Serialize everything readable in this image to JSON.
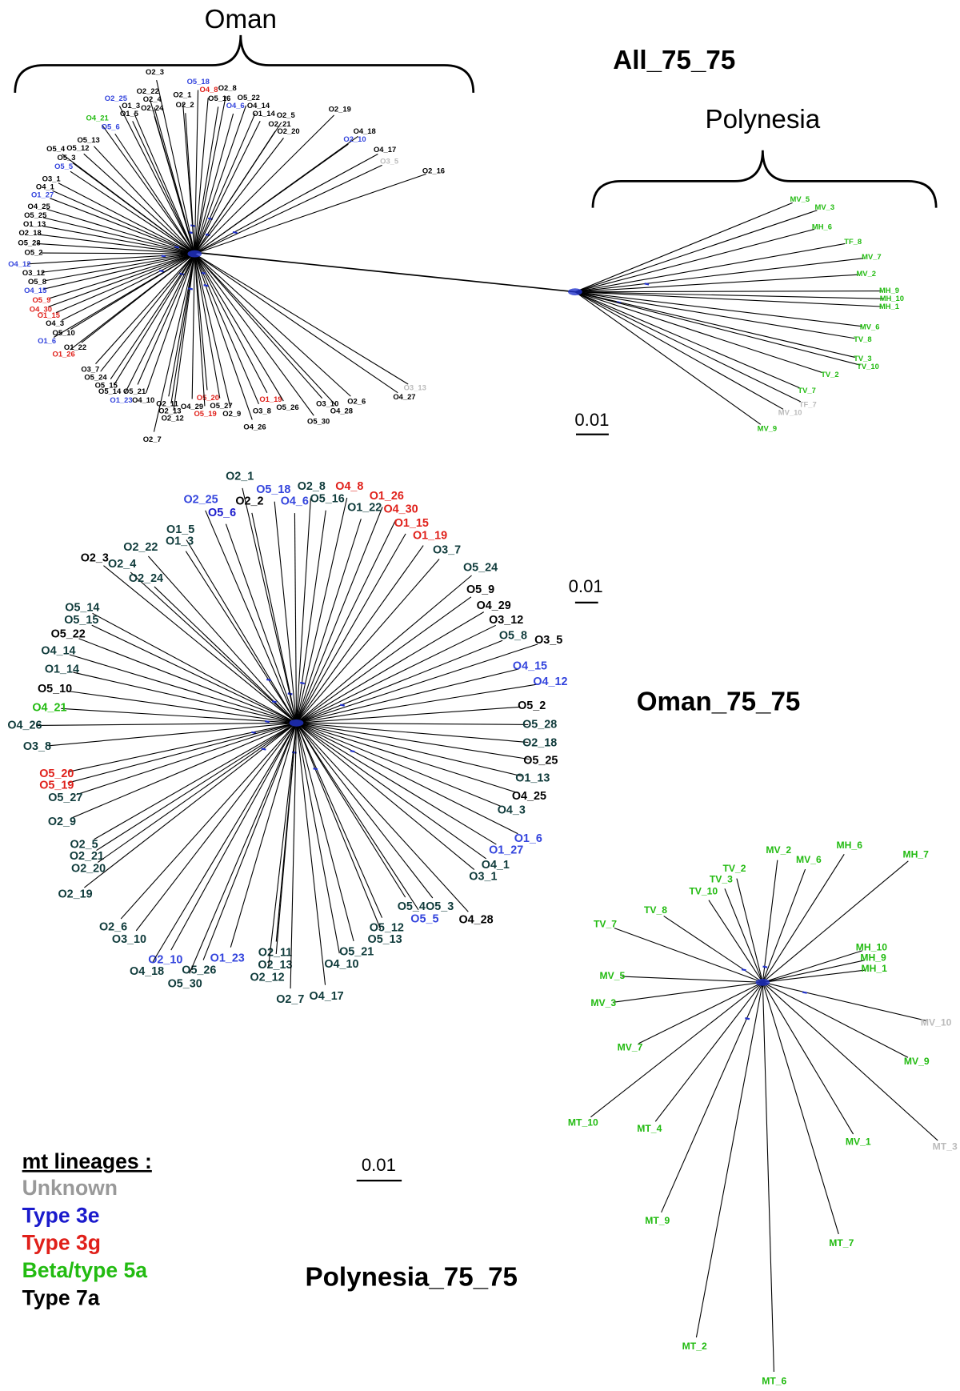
{
  "panels": [
    {
      "title": "All_75_75",
      "scale_bar": "0.01",
      "groups": [
        "Oman",
        "Polynesia"
      ],
      "labels": [
        "O2_3",
        "O5_18",
        "O2_22",
        "O4_8",
        "O2_8",
        "O2_25",
        "O2_4",
        "O2_1",
        "O5_16",
        "O5_22",
        "O1_3",
        "O2_24",
        "O2_2",
        "O4_6",
        "O4_14",
        "O1_5",
        "O1_14",
        "O2_5",
        "O2_19",
        "O4_21",
        "O5_6",
        "O2_21",
        "O2_20",
        "O4_18",
        "O2_10",
        "O5_13",
        "O5_4",
        "O5_12",
        "O4_17",
        "O5_3",
        "O3_5",
        "O5_5",
        "O2_16",
        "O3_1",
        "O4_1",
        "O1_27",
        "O4_25",
        "O5_25",
        "O1_13",
        "O2_18",
        "O5_28",
        "O5_2",
        "O4_12",
        "O3_12",
        "O5_8",
        "O4_15",
        "O5_9",
        "O4_30",
        "O1_15",
        "O4_3",
        "O5_10",
        "O1_6",
        "O1_22",
        "O1_26",
        "O3_7",
        "O5_24",
        "O5_15",
        "O5_14",
        "O5_21",
        "O1_23",
        "O4_10",
        "O2_11",
        "O2_13",
        "O2_12",
        "O4_29",
        "O5_20",
        "O5_19",
        "O5_27",
        "O2_9",
        "O1_19",
        "O3_8",
        "O5_26",
        "O3_10",
        "O2_6",
        "O4_28",
        "O3_13",
        "O4_27",
        "O4_26",
        "O5_30",
        "O2_7",
        "MV_5",
        "MV_3",
        "MH_6",
        "TF_8",
        "MV_7",
        "MV_2",
        "MH_9",
        "MH_10",
        "MH_1",
        "MV_6",
        "TV_8",
        "TV_3",
        "TV_10",
        "TV_2",
        "TV_7",
        "TF_7",
        "MV_10",
        "MV_9"
      ],
      "colors": [
        "#000",
        "#3344dd",
        "#000",
        "#e0201a",
        "#000",
        "#3344dd",
        "#000",
        "#000",
        "#000",
        "#000",
        "#000",
        "#000",
        "#000",
        "#3344dd",
        "#000",
        "#000",
        "#000",
        "#000",
        "#000",
        "#22bb11",
        "#3344dd",
        "#000",
        "#000",
        "#000",
        "#3344dd",
        "#000",
        "#000",
        "#000",
        "#000",
        "#000",
        "#bbbbbb",
        "#3344dd",
        "#000",
        "#000",
        "#000",
        "#3344dd",
        "#000",
        "#000",
        "#000",
        "#000",
        "#000",
        "#000",
        "#3344dd",
        "#000",
        "#000",
        "#3344dd",
        "#e0201a",
        "#e0201a",
        "#e0201a",
        "#000",
        "#000",
        "#3344dd",
        "#000",
        "#e0201a",
        "#000",
        "#000",
        "#000",
        "#000",
        "#000",
        "#3344dd",
        "#000",
        "#000",
        "#000",
        "#000",
        "#000",
        "#e0201a",
        "#e0201a",
        "#000",
        "#000",
        "#e0201a",
        "#000",
        "#000",
        "#000",
        "#000",
        "#000",
        "#bbbbbb",
        "#000",
        "#000",
        "#000",
        "#000",
        "#22bb11",
        "#22bb11",
        "#22bb11",
        "#22bb11",
        "#22bb11",
        "#22bb11",
        "#22bb11",
        "#22bb11",
        "#22bb11",
        "#22bb11",
        "#22bb11",
        "#22bb11",
        "#22bb11",
        "#22bb11",
        "#22bb11",
        "#bbbbbb",
        "#bbbbbb",
        "#22bb11"
      ]
    },
    {
      "title": "Oman_75_75",
      "scale_bar": "0.01",
      "labels": [
        "O2_1",
        "O5_18",
        "O2_8",
        "O4_8",
        "O2_25",
        "O2_2",
        "O4_6",
        "O5_16",
        "O1_26",
        "O5_6",
        "O1_22",
        "O4_30",
        "O1_5",
        "O1_15",
        "O1_3",
        "O1_19",
        "O2_22",
        "O3_7",
        "O2_3",
        "O2_4",
        "O5_24",
        "O2_24",
        "O5_9",
        "O4_29",
        "O5_14",
        "O5_15",
        "O3_12",
        "O5_22",
        "O5_8",
        "O3_5",
        "O4_14",
        "O4_15",
        "O1_14",
        "O4_12",
        "O5_10",
        "O4_21",
        "O5_2",
        "O4_26",
        "O5_28",
        "O3_8",
        "O2_18",
        "O5_25",
        "O5_20",
        "O5_19",
        "O1_13",
        "O5_27",
        "O4_25",
        "O4_3",
        "O2_9",
        "O1_6",
        "O1_27",
        "O2_5",
        "O2_21",
        "O4_1",
        "O2_20",
        "O3_1",
        "O2_19",
        "O5_4",
        "O5_3",
        "O5_12",
        "O4_28",
        "O5_5",
        "O2_6",
        "O5_13",
        "O3_10",
        "O5_21",
        "O2_11",
        "O1_23",
        "O2_10",
        "O4_10",
        "O2_13",
        "O5_26",
        "O4_18",
        "O2_12",
        "O5_30",
        "O4_17",
        "O2_7"
      ],
      "colors": [
        "#0e3a3a",
        "#3344dd",
        "#0e3a3a",
        "#e0201a",
        "#3344dd",
        "#000",
        "#3344dd",
        "#0e3a3a",
        "#e0201a",
        "#1a1acc",
        "#0e3a3a",
        "#e0201a",
        "#0e3a3a",
        "#e0201a",
        "#0e3a3a",
        "#e0201a",
        "#0e3a3a",
        "#0e3a3a",
        "#000",
        "#0e3a3a",
        "#0e3a3a",
        "#0e3a3a",
        "#000",
        "#000",
        "#0e3a3a",
        "#0e3a3a",
        "#000",
        "#000",
        "#0e3a3a",
        "#000",
        "#0e3a3a",
        "#3344dd",
        "#0e3a3a",
        "#3344dd",
        "#000",
        "#22bb11",
        "#000",
        "#0e3a3a",
        "#0e3a3a",
        "#0e3a3a",
        "#0e3a3a",
        "#000",
        "#e0201a",
        "#e0201a",
        "#0e3a3a",
        "#0e3a3a",
        "#000",
        "#0e3a3a",
        "#0e3a3a",
        "#3344dd",
        "#3344dd",
        "#0e3a3a",
        "#0e3a3a",
        "#0e3a3a",
        "#0e3a3a",
        "#0e3a3a",
        "#0e3a3a",
        "#0e3a3a",
        "#0e3a3a",
        "#0e3a3a",
        "#000",
        "#3344dd",
        "#0e3a3a",
        "#0e3a3a",
        "#0e3a3a",
        "#0e3a3a",
        "#0e3a3a",
        "#3344dd",
        "#3344dd",
        "#0e3a3a",
        "#0e3a3a",
        "#0e3a3a",
        "#0e3a3a",
        "#0e3a3a",
        "#0e3a3a",
        "#0e3a3a",
        "#0e3a3a"
      ]
    },
    {
      "title": "Polynesia_75_75",
      "scale_bar": "0.01",
      "labels": [
        "MV_2",
        "MH_6",
        "MH_7",
        "TV_2",
        "MV_6",
        "TV_3",
        "TV_10",
        "TV_8",
        "TV_7",
        "MH_10",
        "MH_9",
        "MH_1",
        "MV_5",
        "MV_3",
        "MV_10",
        "MV_7",
        "MV_9",
        "MT_10",
        "MT_4",
        "MV_1",
        "MT_3",
        "MT_9",
        "MT_7",
        "MT_2",
        "MT_6"
      ],
      "colors": [
        "#22bb11",
        "#22bb11",
        "#22bb11",
        "#22bb11",
        "#22bb11",
        "#22bb11",
        "#22bb11",
        "#22bb11",
        "#22bb11",
        "#22bb11",
        "#22bb11",
        "#22bb11",
        "#22bb11",
        "#22bb11",
        "#bbbbbb",
        "#22bb11",
        "#22bb11",
        "#22bb11",
        "#22bb11",
        "#22bb11",
        "#bbbbbb",
        "#22bb11",
        "#22bb11",
        "#22bb11",
        "#22bb11"
      ]
    }
  ],
  "legend": {
    "title": "mt lineages :",
    "items": [
      {
        "label": "Unknown",
        "color": "#999999"
      },
      {
        "label": "Type 3e",
        "color": "#1a1acc"
      },
      {
        "label": "Type 3g",
        "color": "#e0201a"
      },
      {
        "label": "Beta/type 5a",
        "color": "#22bb11"
      },
      {
        "label": "Type 7a",
        "color": "#000000"
      }
    ]
  }
}
